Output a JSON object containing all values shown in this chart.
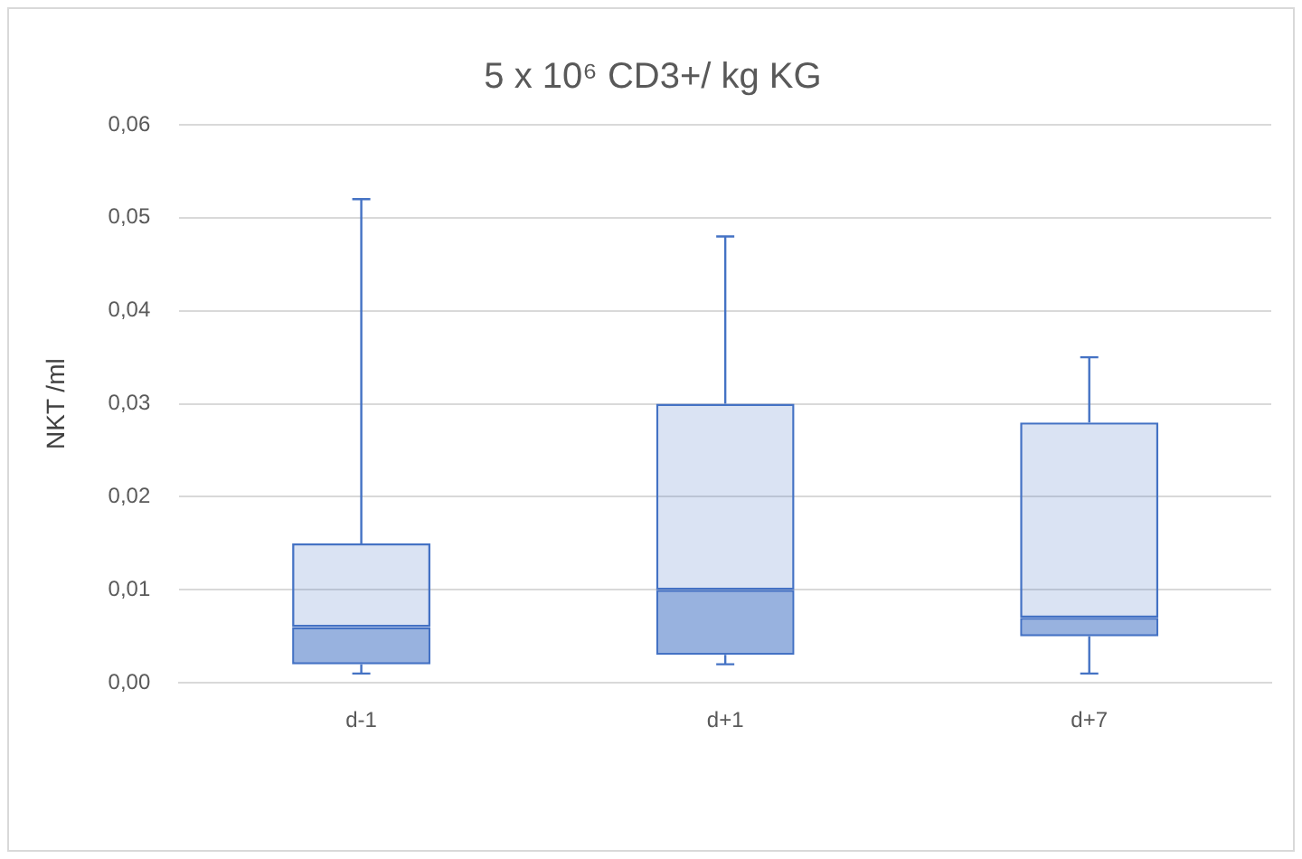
{
  "chart_data": {
    "type": "box",
    "title": "5 x 10⁶ CD3+/ kg KG",
    "ylabel": "NKT /ml",
    "categories": [
      "d-1",
      "d+1",
      "d+7"
    ],
    "series": [
      {
        "color": "#4472c4",
        "boxes": [
          {
            "low": 0.001,
            "q1": 0.002,
            "median": 0.006,
            "q3": 0.015,
            "high": 0.052
          },
          {
            "low": 0.002,
            "q1": 0.003,
            "median": 0.01,
            "q3": 0.03,
            "high": 0.048
          },
          {
            "low": 0.001,
            "q1": 0.005,
            "median": 0.007,
            "q3": 0.028,
            "high": 0.035
          }
        ]
      }
    ],
    "ylim": [
      0,
      0.06
    ],
    "yticks": [
      {
        "value": 0,
        "label": "0,00"
      },
      {
        "value": 0.01,
        "label": "0,01"
      },
      {
        "value": 0.02,
        "label": "0,02"
      },
      {
        "value": 0.03,
        "label": "0,03"
      },
      {
        "value": 0.04,
        "label": "0,04"
      },
      {
        "value": 0.05,
        "label": "0,05"
      },
      {
        "value": 0.06,
        "label": "0,06"
      }
    ],
    "grid": "y",
    "legend": false
  }
}
